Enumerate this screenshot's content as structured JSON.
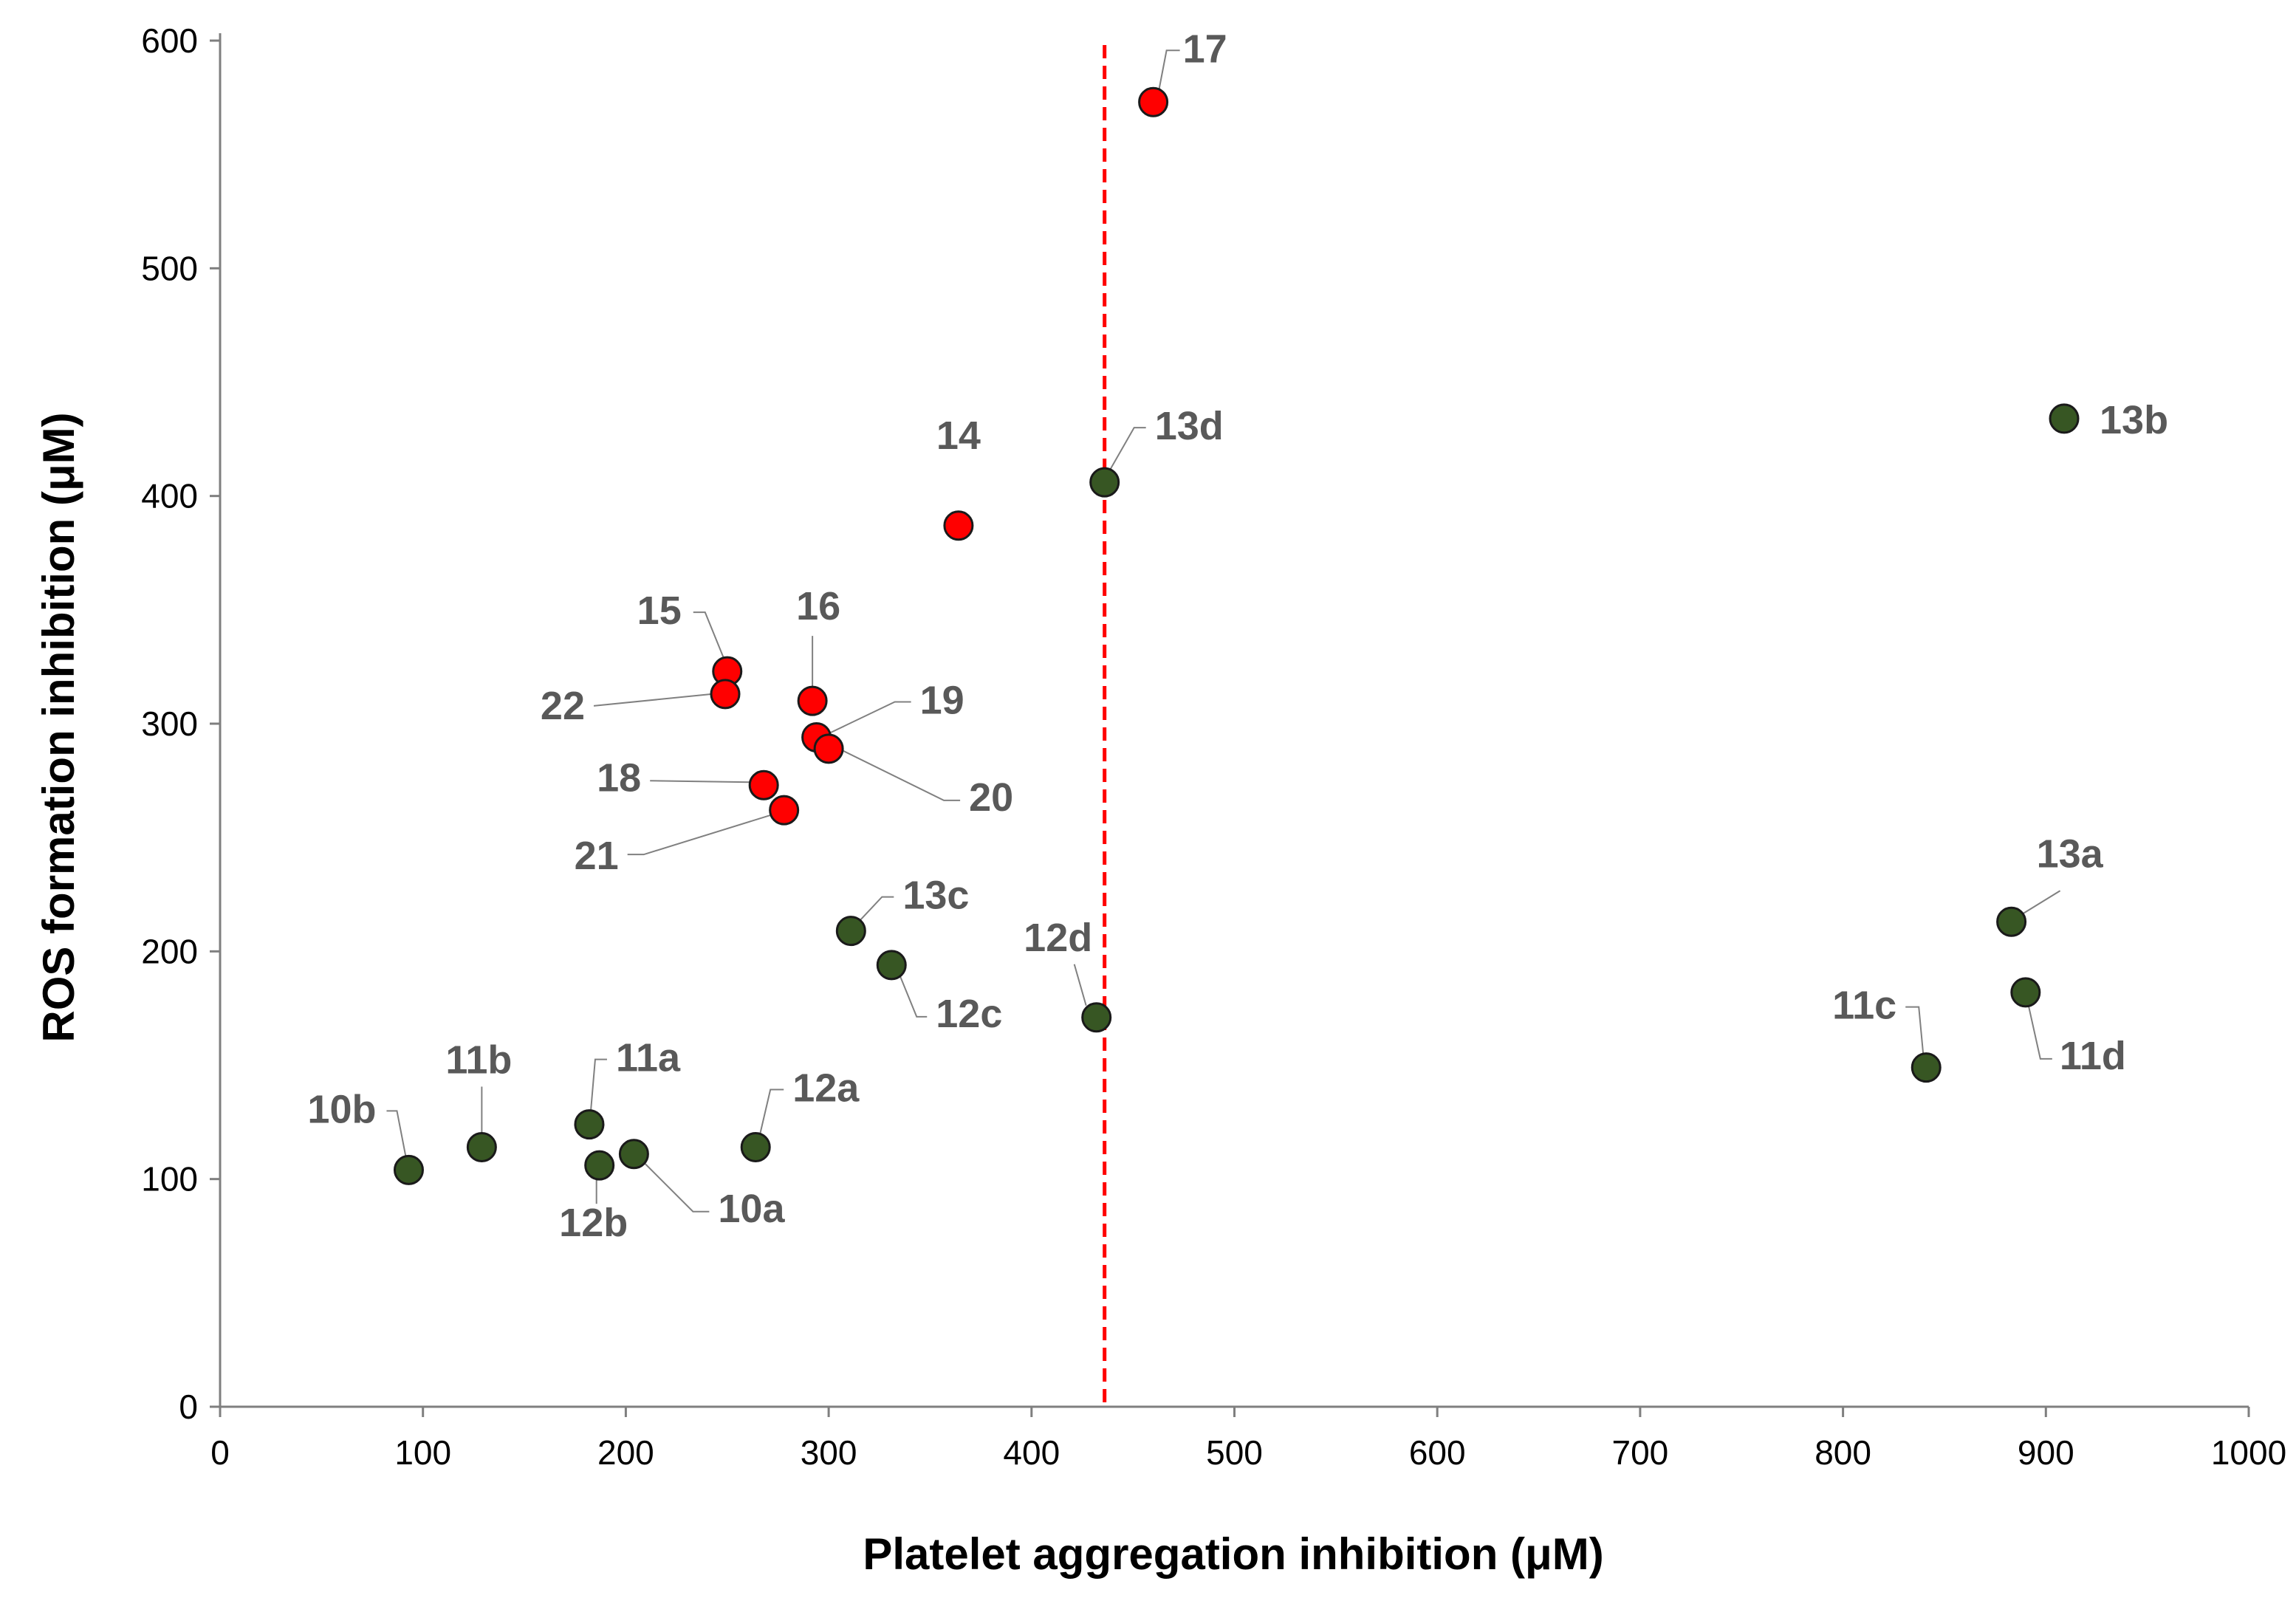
{
  "chart_data": {
    "type": "scatter",
    "title": "",
    "xlabel": "Platelet aggregation inhibition (μM)",
    "ylabel": "ROS formation inhibition (μM)",
    "xlim": [
      0,
      1000
    ],
    "ylim": [
      0,
      600
    ],
    "xticks": [
      0,
      100,
      200,
      300,
      400,
      500,
      600,
      700,
      800,
      900,
      1000
    ],
    "yticks": [
      0,
      100,
      200,
      300,
      400,
      500,
      600
    ],
    "grid": false,
    "reference_line": {
      "axis": "x",
      "value": 436,
      "style": "dashed",
      "color": "#ff0000"
    },
    "colors": {
      "red": "#ff0000",
      "green": "#375623"
    },
    "series": [
      {
        "name": "red",
        "color": "#ff0000",
        "points": [
          {
            "label": "14",
            "x": 364,
            "y": 387
          },
          {
            "label": "15",
            "x": 250,
            "y": 323
          },
          {
            "label": "16",
            "x": 292,
            "y": 310
          },
          {
            "label": "17",
            "x": 460,
            "y": 573
          },
          {
            "label": "18",
            "x": 268,
            "y": 273
          },
          {
            "label": "19",
            "x": 294,
            "y": 294
          },
          {
            "label": "20",
            "x": 300,
            "y": 289
          },
          {
            "label": "21",
            "x": 278,
            "y": 262
          },
          {
            "label": "22",
            "x": 249,
            "y": 313
          }
        ]
      },
      {
        "name": "green",
        "color": "#375623",
        "points": [
          {
            "label": "10a",
            "x": 204,
            "y": 111
          },
          {
            "label": "10b",
            "x": 93,
            "y": 104
          },
          {
            "label": "11a",
            "x": 182,
            "y": 124
          },
          {
            "label": "11b",
            "x": 129,
            "y": 114
          },
          {
            "label": "11c",
            "x": 841,
            "y": 149
          },
          {
            "label": "11d",
            "x": 890,
            "y": 182
          },
          {
            "label": "12a",
            "x": 264,
            "y": 114
          },
          {
            "label": "12b",
            "x": 187,
            "y": 106
          },
          {
            "label": "12c",
            "x": 331,
            "y": 194
          },
          {
            "label": "12d",
            "x": 432,
            "y": 171
          },
          {
            "label": "13a",
            "x": 883,
            "y": 213
          },
          {
            "label": "13b",
            "x": 909,
            "y": 434
          },
          {
            "label": "13c",
            "x": 311,
            "y": 209
          },
          {
            "label": "13d",
            "x": 436,
            "y": 406
          }
        ]
      }
    ]
  }
}
